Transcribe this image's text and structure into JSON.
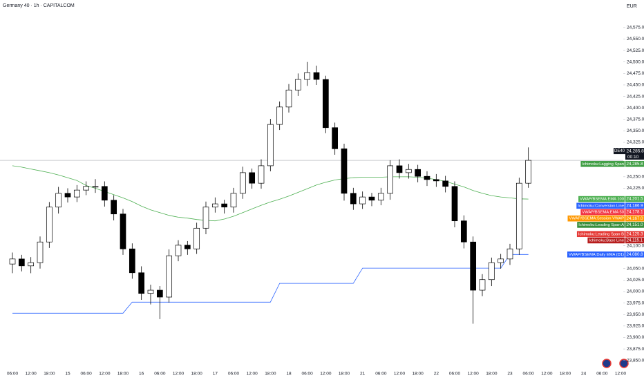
{
  "chart_data": {
    "type": "candlestick",
    "title": "Germany 40 · 1h · CAPITALCOM",
    "currency": "EUR",
    "symbol": "DE40",
    "last_price": {
      "value": 24285.8,
      "label": "24,285.8"
    },
    "countdown": "00:10",
    "up_color": "#ffffff",
    "down_color": "#000000",
    "ylim": [
      23830,
      24635
    ],
    "yticks": [
      {
        "value": 24575,
        "label": "24,575.0"
      },
      {
        "value": 24550,
        "label": "24,550.0"
      },
      {
        "value": 24525,
        "label": "24,525.0"
      },
      {
        "value": 24500,
        "label": "24,500.0"
      },
      {
        "value": 24475,
        "label": "24,475.0"
      },
      {
        "value": 24450,
        "label": "24,450.0"
      },
      {
        "value": 24425,
        "label": "24,425.0"
      },
      {
        "value": 24400,
        "label": "24,400.0"
      },
      {
        "value": 24375,
        "label": "24,375.0"
      },
      {
        "value": 24350,
        "label": "24,350.0"
      },
      {
        "value": 24325,
        "label": "24,325.0"
      },
      {
        "value": 24250,
        "label": "24,250.0"
      },
      {
        "value": 24225,
        "label": "24,225.0"
      },
      {
        "value": 24100,
        "label": "24,100.0"
      },
      {
        "value": 24050,
        "label": "24,050.0"
      },
      {
        "value": 24025,
        "label": "24,025.0"
      },
      {
        "value": 24000,
        "label": "24,000.0"
      },
      {
        "value": 23975,
        "label": "23,975.0"
      },
      {
        "value": 23950,
        "label": "23,950.0"
      },
      {
        "value": 23925,
        "label": "23,925.0"
      },
      {
        "value": 23900,
        "label": "23,900.0"
      },
      {
        "value": 23875,
        "label": "23,875.0"
      },
      {
        "value": 23850,
        "label": "23,850.0"
      }
    ],
    "categories": [
      "06:00",
      null,
      "12:00",
      null,
      "18:00",
      null,
      "15",
      null,
      "06:00",
      null,
      "12:00",
      null,
      "18:00",
      null,
      "16",
      null,
      "06:00",
      null,
      "12:00",
      null,
      "18:00",
      null,
      "17",
      null,
      "06:00",
      null,
      "12:00",
      null,
      "18:00",
      null,
      "18",
      null,
      "06:00",
      null,
      "12:00",
      null,
      "18:00",
      null,
      "21",
      null,
      "06:00",
      null,
      "12:00",
      null,
      "18:00",
      null,
      "22",
      null,
      "06:00",
      null,
      "12:00",
      null,
      "18:00",
      null,
      "23",
      null,
      "06:00",
      null,
      "12:00",
      null,
      "18:00",
      null,
      "24",
      null,
      "06:00",
      null,
      "12:00"
    ],
    "open": [
      24060,
      24071,
      24056,
      24063,
      24108,
      24184,
      24214,
      24206,
      24221,
      24229,
      24229,
      24199,
      24169,
      24093,
      24041,
      23996,
      24003,
      23988,
      24078,
      24101,
      24093,
      24138,
      24184,
      24191,
      24184,
      24214,
      24259,
      24236,
      24274,
      24364,
      24402,
      24439,
      24462,
      24477,
      24462,
      24357,
      24311,
      24214,
      24191,
      24206,
      24199,
      24214,
      24274,
      24259,
      24266,
      24251,
      24244,
      24241,
      24229,
      24154,
      24108,
      24003,
      24026,
      24063,
      24071,
      24093,
      24236,
      null,
      null,
      null,
      null,
      null,
      null,
      null,
      null,
      null,
      null
    ],
    "high": [
      24085,
      24080,
      24075,
      24120,
      24195,
      24228,
      24225,
      24232,
      24240,
      24245,
      24240,
      24210,
      24180,
      24105,
      24055,
      24015,
      24012,
      24092,
      24112,
      24110,
      24150,
      24196,
      24205,
      24200,
      24226,
      24272,
      24268,
      24288,
      24376,
      24414,
      24452,
      24475,
      24500,
      24492,
      24470,
      24368,
      24322,
      24226,
      24218,
      24215,
      24226,
      24286,
      24288,
      24278,
      24276,
      24262,
      24256,
      24252,
      24240,
      24166,
      24120,
      24038,
      24074,
      24082,
      24104,
      24248,
      24314,
      null,
      null,
      null,
      null,
      null,
      null,
      null,
      null,
      null,
      null
    ],
    "low": [
      24040,
      24044,
      24040,
      24050,
      24095,
      24170,
      24194,
      24195,
      24210,
      24215,
      24185,
      24155,
      24080,
      24028,
      23982,
      23972,
      23940,
      23976,
      24066,
      24080,
      24082,
      24125,
      24172,
      24170,
      24172,
      24202,
      24224,
      24224,
      24262,
      24352,
      24390,
      24426,
      24448,
      24450,
      24345,
      24298,
      24198,
      24178,
      24180,
      24186,
      24188,
      24200,
      24246,
      24246,
      24238,
      24230,
      24228,
      24216,
      24140,
      24094,
      23930,
      23990,
      24012,
      24050,
      24058,
      24080,
      24226,
      null,
      null,
      null,
      null,
      null,
      null,
      null,
      null,
      null,
      null
    ],
    "close": [
      24071,
      24056,
      24063,
      24108,
      24184,
      24214,
      24206,
      24221,
      24229,
      24229,
      24199,
      24169,
      24093,
      24041,
      23996,
      24003,
      23988,
      24078,
      24101,
      24093,
      24138,
      24184,
      24191,
      24184,
      24214,
      24259,
      24236,
      24274,
      24364,
      24402,
      24439,
      24462,
      24477,
      24462,
      24357,
      24311,
      24214,
      24191,
      24206,
      24199,
      24214,
      24274,
      24259,
      24266,
      24251,
      24244,
      24241,
      24229,
      24154,
      24108,
      24003,
      24026,
      24063,
      24071,
      24093,
      24236,
      24285.8,
      null,
      null,
      null,
      null,
      null,
      null,
      null,
      null,
      null,
      null
    ],
    "indicators": [
      {
        "name": "Ichimoku:Lagging Span",
        "color": "#43a047",
        "value": 24285.8,
        "label": "24,285.8"
      },
      {
        "name": "VWAP/BSEMA:EMA 100",
        "color": "#4caf50",
        "value": 24201.5,
        "label": "24,201.5",
        "values": [
          24274,
          24271,
          24267,
          24263,
          24259,
          24254,
          24248,
          24242,
          24231,
          24225,
          24218,
          24211,
          24204,
          24196,
          24186,
          24178,
          24172,
          24166,
          24162,
          24160,
          24157,
          24155,
          24154,
          24158,
          24164,
          24172,
          24180,
          24188,
          24195,
          24201,
          24208,
          24216,
          24224,
          24232,
          24238,
          24243,
          24246,
          24248,
          24249,
          24249,
          24249,
          24250,
          24250,
          24250,
          24249,
          24247,
          24244,
          24240,
          24234,
          24228,
          24220,
          24214,
          24209,
          24206,
          24204,
          24202,
          24201.5,
          null,
          null,
          null,
          null,
          null,
          null,
          null,
          null,
          null,
          null
        ]
      },
      {
        "name": "Ichimoku:Conversion Line",
        "color": "#2962ff",
        "value": 24186.9,
        "label": "24,186.9"
      },
      {
        "name": "VWAP/BSEMA:EMA 50",
        "color": "#f23645",
        "value": 24178.1,
        "label": "24,178.1"
      },
      {
        "name": "VWAP/BSEMA:Session VWAP",
        "color": "#ff9800",
        "value": 24167.0,
        "label": "24,167.0"
      },
      {
        "name": "Ichimoku:Leading Span A",
        "color": "#388e3c",
        "value": 24151.0,
        "label": "24,151.0"
      },
      {
        "name": "Ichimoku:Leading Span B",
        "color": "#e53935",
        "value": 24125.3,
        "label": "24,125.3"
      },
      {
        "name": "Ichimoku:Base Line",
        "color": "#b71c1c",
        "value": 24115.1,
        "label": "24,115.1"
      },
      {
        "name": "VWAP/BSEMA:Daily EMA (D1)",
        "color": "#2962ff",
        "value": 24080.8,
        "label": "24,080.8",
        "values": [
          23953,
          23953,
          23953,
          23953,
          23953,
          23953,
          23953,
          23953,
          23953,
          23953,
          23953,
          23953,
          23953,
          23977,
          23977,
          23977,
          23977,
          23977,
          23977,
          23977,
          23977,
          23977,
          23977,
          23977,
          23977,
          23977,
          23977,
          23977,
          23977,
          24018,
          24018,
          24018,
          24018,
          24018,
          24018,
          24018,
          24018,
          24018,
          24051,
          24051,
          24051,
          24051,
          24051,
          24051,
          24051,
          24051,
          24051,
          24051,
          24051,
          24051,
          24051,
          24051,
          24051,
          24051,
          24080.8,
          24080.8,
          24080.8,
          null,
          null,
          null,
          null,
          null,
          null,
          null,
          null,
          null,
          null
        ]
      }
    ]
  }
}
